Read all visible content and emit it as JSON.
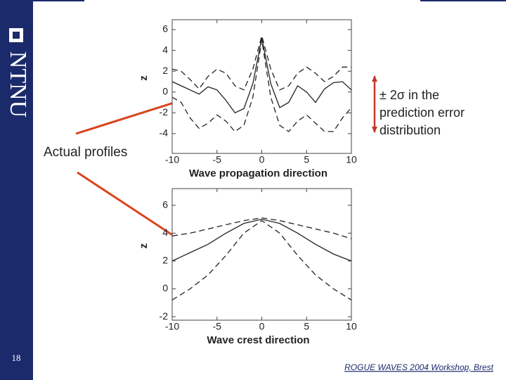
{
  "slide": {
    "logo": "NTNU",
    "page_number": "18",
    "footer": "ROGUE WAVES 2004 Workshop, Brest",
    "annotations": [
      {
        "text": "Actual profiles"
      },
      {
        "lines": [
          "± 2σ in the",
          "prediction error",
          "distribution"
        ]
      }
    ]
  },
  "chart_data": [
    {
      "type": "line",
      "xlabel": "Wave propagation direction",
      "ylabel": "z",
      "x": [
        -10,
        -9,
        -8,
        -7,
        -6,
        -5,
        -4,
        -3,
        -2,
        -1,
        0,
        1,
        2,
        3,
        4,
        5,
        6,
        7,
        8,
        9,
        10
      ],
      "series": [
        {
          "color": "#222222",
          "style": "solid",
          "values": [
            1.0,
            0.6,
            0.2,
            -0.2,
            0.5,
            0.2,
            -0.8,
            -2.0,
            -1.6,
            0.8,
            5.2,
            0.8,
            -1.5,
            -1.0,
            0.6,
            0.0,
            -1.0,
            0.3,
            0.9,
            1.0,
            0.2
          ]
        },
        {
          "color": "#222222",
          "style": "dashed",
          "values": [
            2.2,
            2.0,
            1.2,
            0.3,
            1.5,
            2.2,
            1.8,
            0.6,
            0.2,
            2.2,
            5.4,
            2.2,
            0.2,
            0.6,
            1.8,
            2.4,
            1.8,
            1.0,
            1.5,
            2.4,
            2.4
          ]
        },
        {
          "color": "#222222",
          "style": "dashed",
          "values": [
            -0.5,
            -1.0,
            -2.5,
            -3.5,
            -3.0,
            -2.2,
            -2.8,
            -3.8,
            -3.2,
            -0.5,
            5.0,
            -0.5,
            -3.2,
            -3.8,
            -2.8,
            -2.2,
            -3.0,
            -3.8,
            -3.8,
            -2.5,
            -1.5
          ]
        }
      ],
      "xlim": [
        -10,
        10
      ],
      "xticks": [
        -10,
        -5,
        0,
        5,
        10
      ],
      "ylim": [
        -5.9,
        6.95
      ],
      "yticks": [
        -4,
        -2,
        0,
        2,
        4,
        6
      ]
    },
    {
      "type": "line",
      "xlabel": "Wave crest direction",
      "ylabel": "z",
      "x": [
        -10,
        -8,
        -6,
        -4,
        -2,
        0,
        2,
        4,
        6,
        8,
        10
      ],
      "series": [
        {
          "color": "#222222",
          "style": "solid",
          "values": [
            2.0,
            2.6,
            3.2,
            4.0,
            4.7,
            5.0,
            4.7,
            4.0,
            3.2,
            2.5,
            2.0
          ]
        },
        {
          "color": "#222222",
          "style": "dashed",
          "values": [
            3.8,
            4.0,
            4.3,
            4.6,
            4.9,
            5.1,
            4.9,
            4.6,
            4.3,
            4.0,
            3.6
          ]
        },
        {
          "color": "#222222",
          "style": "dashed",
          "values": [
            -0.8,
            0.0,
            1.0,
            2.4,
            4.0,
            4.9,
            4.0,
            2.4,
            1.0,
            0.0,
            -0.8
          ]
        }
      ],
      "xlim": [
        -10,
        10
      ],
      "xticks": [
        -10,
        -5,
        0,
        5,
        10
      ],
      "ylim": [
        -2.25,
        7.2
      ],
      "yticks": [
        -2,
        0,
        2,
        4,
        6
      ]
    }
  ]
}
